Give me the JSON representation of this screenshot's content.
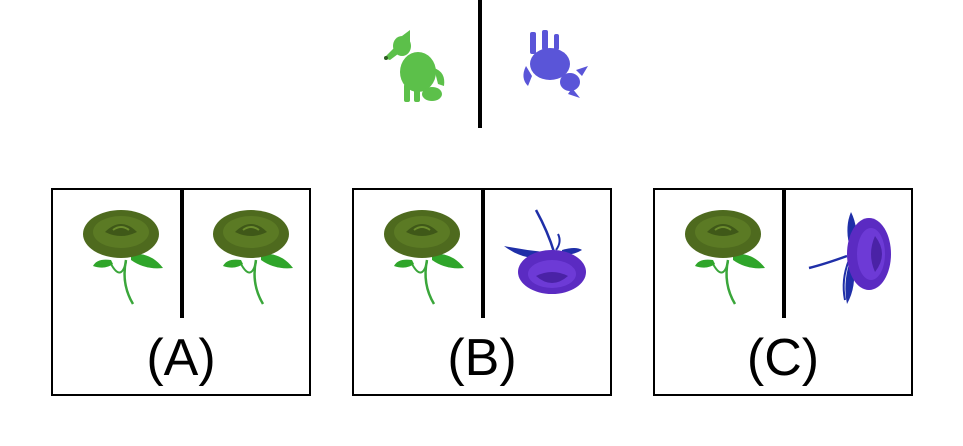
{
  "prompt": {
    "left_icon": "green-dog-sitting-icon",
    "right_icon": "blue-dog-upside-down-icon",
    "colors": {
      "green": "#5cc04a",
      "blue": "#5a55d8"
    }
  },
  "options": [
    {
      "label": "(A)",
      "left_icon": "green-rose-icon",
      "right_icon": "green-rose-icon"
    },
    {
      "label": "(B)",
      "left_icon": "green-rose-icon",
      "right_icon": "purple-rose-upside-down-icon"
    },
    {
      "label": "(C)",
      "left_icon": "green-rose-icon",
      "right_icon": "purple-rose-sideways-icon"
    }
  ],
  "colors": {
    "rose_green": "#4e6a1e",
    "leaf_green": "#2fa52a",
    "rose_purple": "#5b2bc2",
    "leaf_blue": "#1f2fa8"
  }
}
